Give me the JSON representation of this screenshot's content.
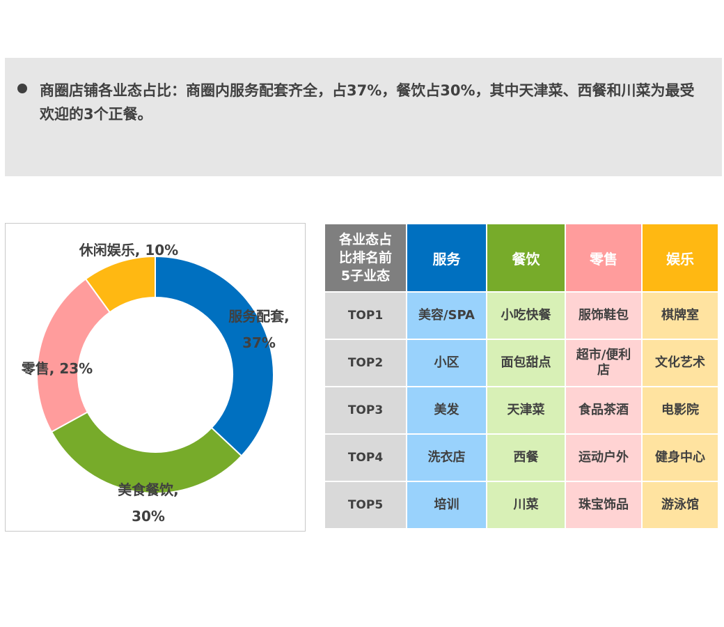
{
  "summary": {
    "text": "商圈店铺各业态占比：商圈内服务配套齐全，占37%，餐饮占30%，其中天津菜、西餐和川菜为最受欢迎的3个正餐。"
  },
  "chart_data": {
    "type": "pie",
    "donut": true,
    "slices": [
      {
        "name": "服务配套",
        "value": 37,
        "label_line1": "服务配套,",
        "label_line2": "37%",
        "color": "#0070c0"
      },
      {
        "name": "美食餐饮",
        "value": 30,
        "label_line1": "美食餐饮,",
        "label_line2": "30%",
        "color": "#77ab2a"
      },
      {
        "name": "零售",
        "value": 23,
        "label_line1": "零售, 23%",
        "label_line2": "",
        "color": "#ff9c9c"
      },
      {
        "name": "休闲娱乐",
        "value": 10,
        "label_line1": "休闲娱乐, 10%",
        "label_line2": "",
        "color": "#ffb812"
      }
    ]
  },
  "table": {
    "corner_line1": "各业态占",
    "corner_line2": "比排名前",
    "corner_line3": "5子业态",
    "columns": [
      {
        "label": "服务",
        "header_color": "#0070c0",
        "cell_color": "#99d2fc"
      },
      {
        "label": "餐饮",
        "header_color": "#77ab2a",
        "cell_color": "#d8f0b6"
      },
      {
        "label": "零售",
        "header_color": "#ff9c9c",
        "cell_color": "#ffd3d3"
      },
      {
        "label": "娱乐",
        "header_color": "#ffb812",
        "cell_color": "#ffe3a0"
      }
    ],
    "rows": [
      {
        "rank": "TOP1",
        "cells": [
          "美容/SPA",
          "小吃快餐",
          "服饰鞋包",
          "棋牌室"
        ]
      },
      {
        "rank": "TOP2",
        "cells": [
          "小区",
          "面包甜点",
          "超市/便利店",
          "文化艺术"
        ]
      },
      {
        "rank": "TOP3",
        "cells": [
          "美发",
          "天津菜",
          "食品茶酒",
          "电影院"
        ]
      },
      {
        "rank": "TOP4",
        "cells": [
          "洗衣店",
          "西餐",
          "运动户外",
          "健身中心"
        ]
      },
      {
        "rank": "TOP5",
        "cells": [
          "培训",
          "川菜",
          "珠宝饰品",
          "游泳馆"
        ]
      }
    ]
  }
}
